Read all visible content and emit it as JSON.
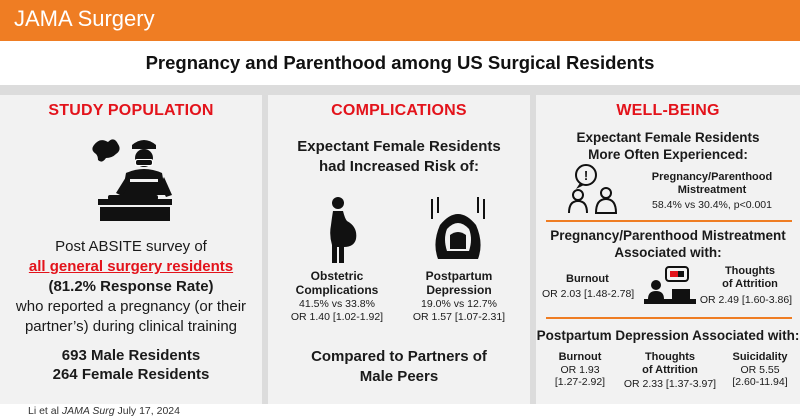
{
  "header": {
    "journal": "JAMA Surgery"
  },
  "title": "Pregnancy and Parenthood among US Surgical Residents",
  "study_population": {
    "heading": "STUDY POPULATION",
    "line1": "Post ABSITE survey of",
    "line2": "all general surgery residents",
    "line3": "(81.2% Response Rate)",
    "line4": "who reported a pregnancy (or their",
    "line5": "partner’s) during clinical training",
    "male": "693 Male Residents",
    "female": "264 Female Residents",
    "icon": "surgeon-operating-icon"
  },
  "complications": {
    "heading": "COMPLICATIONS",
    "intro1": "Expectant Female Residents",
    "intro2": "had Increased Risk of:",
    "obstetric": {
      "label1": "Obstetric",
      "label2": "Complications",
      "pct": "41.5% vs 33.8%",
      "or": "OR 1.40 [1.02-1.92]"
    },
    "postpartum": {
      "label1": "Postpartum",
      "label2": "Depression",
      "pct": "19.0% vs 12.7%",
      "or": "OR 1.57 [1.07-2.31]"
    },
    "compare1": "Compared to Partners of",
    "compare2": "Male Peers"
  },
  "wellbeing": {
    "heading": "WELL-BEING",
    "intro1": "Expectant Female Residents",
    "intro2": "More Often Experienced:",
    "mistreat_label1": "Pregnancy/Parenthood",
    "mistreat_label2": "Mistreatment",
    "mistreat_stat": "58.4% vs 30.4%, p<0.001",
    "assoc_title1": "Pregnancy/Parenthood Mistreatment",
    "assoc_title2": "Associated with:",
    "burnout_label": "Burnout",
    "burnout_or": "OR 2.03 [1.48-2.78]",
    "attrition_label1": "Thoughts",
    "attrition_label2": "of Attrition",
    "attrition_or": "OR 2.49 [1.60-3.86]",
    "pp_title": "Postpartum Depression Associated with:",
    "pp_burnout_label": "Burnout",
    "pp_burnout_or1": "OR 1.93",
    "pp_burnout_or2": "[1.27-2.92]",
    "pp_attr_label1": "Thoughts",
    "pp_attr_label2": "of Attrition",
    "pp_attr_or": "OR 2.33 [1.37-3.97]",
    "pp_suic_label": "Suicidality",
    "pp_suic_or1": "OR 5.55",
    "pp_suic_or2": "[2.60-11.94]"
  },
  "footer": {
    "authors": "Li et al",
    "journal": "JAMA Surg",
    "date": "July 17, 2024"
  }
}
